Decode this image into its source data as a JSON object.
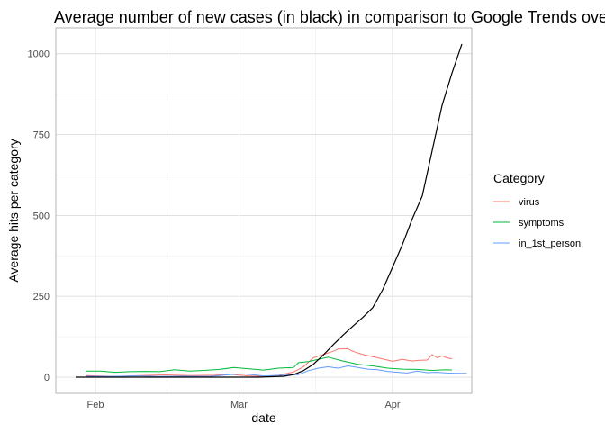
{
  "chart_data": {
    "type": "line",
    "title": "Average number of new cases (in black) in comparison to Google Trends ove",
    "xlabel": "date",
    "ylabel": "Average hits per category",
    "x_ticks": [
      "Feb",
      "Mar",
      "Apr"
    ],
    "x_tick_dates": [
      "2020-02-01",
      "2020-03-01",
      "2020-04-01"
    ],
    "xlim": [
      "2020-01-24",
      "2020-04-17"
    ],
    "y_ticks": [
      "0",
      "250",
      "500",
      "750",
      "1000"
    ],
    "y_tick_values": [
      0,
      250,
      500,
      750,
      1000
    ],
    "ylim": [
      -50,
      1080
    ],
    "grid": true,
    "legend_title": "Category",
    "legend_position": "right",
    "colors": {
      "virus": "#F8766D",
      "symptoms": "#00BA38",
      "in_1st_person": "#619CFF",
      "cases": "#000000"
    },
    "series": [
      {
        "name": "virus",
        "x": [
          "2020-01-30",
          "2020-02-05",
          "2020-02-10",
          "2020-02-15",
          "2020-02-20",
          "2020-02-25",
          "2020-02-28",
          "2020-03-03",
          "2020-03-06",
          "2020-03-09",
          "2020-03-12",
          "2020-03-14",
          "2020-03-16",
          "2020-03-18",
          "2020-03-20",
          "2020-03-21",
          "2020-03-23",
          "2020-03-24",
          "2020-03-26",
          "2020-03-29",
          "2020-04-01",
          "2020-04-03",
          "2020-04-05",
          "2020-04-06",
          "2020-04-08",
          "2020-04-09",
          "2020-04-10",
          "2020-04-11",
          "2020-04-12",
          "2020-04-13"
        ],
        "values": [
          5,
          2,
          5,
          7,
          5,
          6,
          9,
          4,
          2,
          6,
          16,
          32,
          60,
          70,
          80,
          87,
          88,
          80,
          70,
          60,
          49,
          55,
          50,
          52,
          53,
          70,
          60,
          66,
          60,
          57
        ]
      },
      {
        "name": "symptoms",
        "x": [
          "2020-01-30",
          "2020-02-02",
          "2020-02-05",
          "2020-02-08",
          "2020-02-11",
          "2020-02-14",
          "2020-02-17",
          "2020-02-20",
          "2020-02-23",
          "2020-02-26",
          "2020-02-29",
          "2020-03-03",
          "2020-03-06",
          "2020-03-09",
          "2020-03-12",
          "2020-03-13",
          "2020-03-15",
          "2020-03-17",
          "2020-03-19",
          "2020-03-22",
          "2020-03-25",
          "2020-03-28",
          "2020-03-31",
          "2020-04-03",
          "2020-04-06",
          "2020-04-09",
          "2020-04-12",
          "2020-04-13"
        ],
        "values": [
          19,
          19,
          15,
          17,
          18,
          17,
          23,
          19,
          21,
          24,
          30,
          26,
          22,
          28,
          30,
          45,
          48,
          55,
          62,
          50,
          40,
          35,
          28,
          25,
          24,
          21,
          23,
          22
        ]
      },
      {
        "name": "in_1st_person",
        "x": [
          "2020-01-30",
          "2020-02-04",
          "2020-02-09",
          "2020-02-14",
          "2020-02-19",
          "2020-02-24",
          "2020-02-28",
          "2020-03-02",
          "2020-03-06",
          "2020-03-10",
          "2020-03-13",
          "2020-03-15",
          "2020-03-17",
          "2020-03-19",
          "2020-03-21",
          "2020-03-23",
          "2020-03-25",
          "2020-03-27",
          "2020-03-29",
          "2020-03-31",
          "2020-04-02",
          "2020-04-04",
          "2020-04-06",
          "2020-04-08",
          "2020-04-10",
          "2020-04-12",
          "2020-04-14",
          "2020-04-16"
        ],
        "values": [
          3,
          2,
          4,
          2,
          3,
          2,
          8,
          10,
          4,
          6,
          8,
          20,
          28,
          32,
          28,
          35,
          30,
          25,
          23,
          18,
          15,
          13,
          19,
          14,
          15,
          13,
          12,
          12
        ]
      },
      {
        "name": "cases",
        "x": [
          "2020-01-28",
          "2020-02-05",
          "2020-02-15",
          "2020-02-25",
          "2020-03-05",
          "2020-03-10",
          "2020-03-12",
          "2020-03-14",
          "2020-03-16",
          "2020-03-18",
          "2020-03-20",
          "2020-03-22",
          "2020-03-24",
          "2020-03-26",
          "2020-03-28",
          "2020-03-30",
          "2020-04-01",
          "2020-04-03",
          "2020-04-05",
          "2020-04-07",
          "2020-04-09",
          "2020-04-11",
          "2020-04-13",
          "2020-04-15"
        ],
        "values": [
          0,
          0,
          0,
          0,
          0,
          3,
          8,
          20,
          40,
          68,
          100,
          130,
          158,
          185,
          215,
          270,
          340,
          410,
          490,
          560,
          700,
          840,
          940,
          1030
        ]
      }
    ]
  }
}
